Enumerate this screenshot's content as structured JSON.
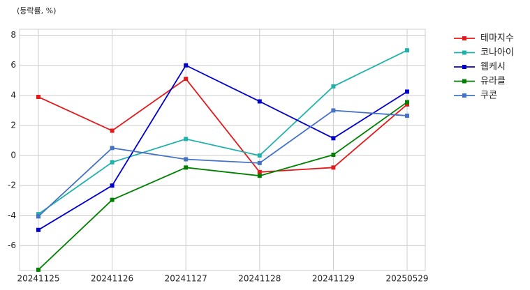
{
  "chart_data": {
    "type": "line",
    "subtitle": "(등락률, %)",
    "categories": [
      "20241125",
      "20241126",
      "20241127",
      "20241128",
      "20241129",
      "20250529"
    ],
    "series": [
      {
        "name": "테마지수",
        "color": "#e31a1c",
        "values": [
          3.9,
          1.65,
          5.1,
          -1.1,
          -0.8,
          3.4
        ]
      },
      {
        "name": "코나아이",
        "color": "#20b2aa",
        "values": [
          -3.9,
          -0.45,
          1.1,
          0.0,
          4.6,
          7.0
        ]
      },
      {
        "name": "웹케시",
        "color": "#0000cd",
        "values": [
          -4.95,
          -2.0,
          6.0,
          3.6,
          1.15,
          4.25
        ]
      },
      {
        "name": "유라클",
        "color": "#008000",
        "values": [
          -7.6,
          -2.95,
          -0.8,
          -1.35,
          0.05,
          3.55
        ]
      },
      {
        "name": "쿠콘",
        "color": "#4472c4",
        "values": [
          -4.05,
          0.5,
          -0.25,
          -0.5,
          3.0,
          2.65
        ]
      }
    ],
    "ylim": [
      -7.65,
      8.4
    ],
    "yticks": [
      -6,
      -4,
      -2,
      0,
      2,
      4,
      6,
      8
    ],
    "grid": true
  }
}
